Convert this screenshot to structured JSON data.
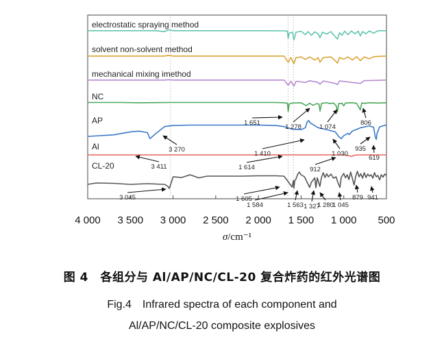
{
  "chart_data": {
    "type": "line",
    "title": "",
    "xlabel_symbol": "σ",
    "xlabel_unit": "cm⁻¹",
    "xlim": [
      4000,
      500
    ],
    "x_ticks": [
      4000,
      3500,
      3000,
      2500,
      2000,
      1500,
      1000,
      500
    ],
    "x_tick_labels": [
      "4 000",
      "3 500",
      "3 000",
      "2 500",
      "2 000",
      "1 500",
      "1 000",
      "500"
    ],
    "grid": false,
    "reference_lines": [
      3030,
      1651,
      1590
    ],
    "series": [
      {
        "name": "electrostatic spraying method",
        "color": "#5fc4ae",
        "points": [
          [
            4000,
            0.5
          ],
          [
            3200,
            0.5
          ],
          [
            3100,
            0.2
          ],
          [
            3050,
            0.8
          ],
          [
            3000,
            0.5
          ],
          [
            2000,
            0.5
          ],
          [
            1700,
            0.45
          ],
          [
            1660,
            0.3
          ],
          [
            1651,
            -2.0
          ],
          [
            1640,
            -0.3
          ],
          [
            1600,
            0.0
          ],
          [
            1584,
            -2.5
          ],
          [
            1560,
            0.0
          ],
          [
            1500,
            0.3
          ],
          [
            1450,
            -0.8
          ],
          [
            1420,
            0.2
          ],
          [
            1380,
            -1.0
          ],
          [
            1340,
            0.1
          ],
          [
            1300,
            -0.5
          ],
          [
            1278,
            -1.8
          ],
          [
            1250,
            0.0
          ],
          [
            1200,
            -0.6
          ],
          [
            1150,
            0.2
          ],
          [
            1100,
            -1.5
          ],
          [
            1074,
            -2.2
          ],
          [
            1050,
            -0.2
          ],
          [
            1020,
            -1.0
          ],
          [
            990,
            0.3
          ],
          [
            950,
            -0.8
          ],
          [
            910,
            0.4
          ],
          [
            870,
            -0.5
          ],
          [
            830,
            0.3
          ],
          [
            806,
            -1.2
          ],
          [
            780,
            0.2
          ],
          [
            740,
            -0.5
          ],
          [
            700,
            0.4
          ],
          [
            650,
            -0.3
          ],
          [
            600,
            0.5
          ],
          [
            500,
            0.5
          ]
        ]
      },
      {
        "name": "solvent non-solvent method",
        "color": "#d9a535",
        "points": [
          [
            4000,
            0.5
          ],
          [
            3100,
            0.5
          ],
          [
            3050,
            0.7
          ],
          [
            3000,
            0.5
          ],
          [
            1700,
            0.5
          ],
          [
            1651,
            -1.5
          ],
          [
            1620,
            0.0
          ],
          [
            1584,
            -2.0
          ],
          [
            1560,
            0.0
          ],
          [
            1500,
            0.2
          ],
          [
            1450,
            -0.6
          ],
          [
            1400,
            0.2
          ],
          [
            1340,
            -0.8
          ],
          [
            1300,
            0.0
          ],
          [
            1278,
            -1.5
          ],
          [
            1240,
            0.0
          ],
          [
            1150,
            0.2
          ],
          [
            1100,
            -1.0
          ],
          [
            1074,
            -1.8
          ],
          [
            1050,
            0.0
          ],
          [
            1000,
            -0.5
          ],
          [
            950,
            0.2
          ],
          [
            900,
            -0.8
          ],
          [
            850,
            0.3
          ],
          [
            806,
            -1.0
          ],
          [
            760,
            0.2
          ],
          [
            700,
            -0.4
          ],
          [
            650,
            0.3
          ],
          [
            500,
            0.5
          ]
        ]
      },
      {
        "name": "mechanical mixing imethod",
        "color": "#b78ad1",
        "points": [
          [
            4000,
            0.5
          ],
          [
            3100,
            0.5
          ],
          [
            3050,
            0.6
          ],
          [
            3000,
            0.5
          ],
          [
            1700,
            0.5
          ],
          [
            1651,
            -1.2
          ],
          [
            1620,
            0.1
          ],
          [
            1584,
            -1.5
          ],
          [
            1560,
            0.1
          ],
          [
            1450,
            -0.3
          ],
          [
            1400,
            0.3
          ],
          [
            1300,
            -0.3
          ],
          [
            1278,
            -0.9
          ],
          [
            1240,
            0.2
          ],
          [
            1100,
            -0.6
          ],
          [
            1074,
            -1.0
          ],
          [
            1050,
            0.2
          ],
          [
            900,
            -0.3
          ],
          [
            806,
            -0.6
          ],
          [
            760,
            0.3
          ],
          [
            500,
            0.5
          ]
        ]
      },
      {
        "name": "NC",
        "color": "#4aa85a",
        "points": [
          [
            4000,
            0.6
          ],
          [
            3600,
            0.6
          ],
          [
            3400,
            0.5
          ],
          [
            3200,
            0.55
          ],
          [
            3000,
            0.6
          ],
          [
            1800,
            0.6
          ],
          [
            1700,
            0.5
          ],
          [
            1660,
            0.3
          ],
          [
            1651,
            -2.5
          ],
          [
            1640,
            0.1
          ],
          [
            1600,
            0.4
          ],
          [
            1500,
            0.5
          ],
          [
            1440,
            -0.5
          ],
          [
            1400,
            0.3
          ],
          [
            1360,
            -0.4
          ],
          [
            1320,
            0.2
          ],
          [
            1290,
            0.0
          ],
          [
            1278,
            -2.4
          ],
          [
            1260,
            0.3
          ],
          [
            1200,
            0.5
          ],
          [
            1160,
            0.2
          ],
          [
            1120,
            0.4
          ],
          [
            1090,
            -0.5
          ],
          [
            1074,
            -2.6
          ],
          [
            1060,
            0.2
          ],
          [
            1020,
            0.3
          ],
          [
            1000,
            -0.6
          ],
          [
            980,
            0.4
          ],
          [
            900,
            0.5
          ],
          [
            850,
            0.3
          ],
          [
            806,
            -2.0
          ],
          [
            790,
            0.4
          ],
          [
            750,
            0.3
          ],
          [
            700,
            0.5
          ],
          [
            600,
            0.4
          ],
          [
            500,
            0.5
          ]
        ]
      },
      {
        "name": "AP",
        "color": "#3a78c8",
        "points": [
          [
            4000,
            -2.0
          ],
          [
            3700,
            -1.6
          ],
          [
            3500,
            -0.8
          ],
          [
            3400,
            -0.6
          ],
          [
            3300,
            -1.0
          ],
          [
            3270,
            -2.6
          ],
          [
            3200,
            -1.2
          ],
          [
            3100,
            0.6
          ],
          [
            3000,
            0.9
          ],
          [
            2800,
            1.0
          ],
          [
            2000,
            1.0
          ],
          [
            1800,
            0.9
          ],
          [
            1700,
            0.6
          ],
          [
            1600,
            -0.1
          ],
          [
            1500,
            -0.2
          ],
          [
            1450,
            0.3
          ],
          [
            1430,
            1.8
          ],
          [
            1410,
            2.2
          ],
          [
            1395,
            1.6
          ],
          [
            1300,
            0.3
          ],
          [
            1200,
            -0.2
          ],
          [
            1100,
            -0.8
          ],
          [
            1060,
            -2.0
          ],
          [
            1030,
            -2.6
          ],
          [
            1000,
            -1.8
          ],
          [
            950,
            -1.2
          ],
          [
            935,
            -1.5
          ],
          [
            900,
            -0.6
          ],
          [
            800,
            0.3
          ],
          [
            700,
            0.8
          ],
          [
            650,
            0.4
          ],
          [
            630,
            -2.2
          ],
          [
            619,
            -2.8
          ],
          [
            610,
            -1.2
          ],
          [
            580,
            0.5
          ],
          [
            530,
            0.9
          ],
          [
            500,
            1.0
          ]
        ]
      },
      {
        "name": "Al",
        "color": "#e8655a",
        "points": [
          [
            4000,
            0.0
          ],
          [
            3500,
            0.0
          ],
          [
            3000,
            0.0
          ],
          [
            2500,
            0.0
          ],
          [
            2000,
            0.0
          ],
          [
            1500,
            0.0
          ],
          [
            1000,
            0.0
          ],
          [
            912,
            -0.4
          ],
          [
            850,
            0.0
          ],
          [
            700,
            0.0
          ],
          [
            500,
            0.0
          ]
        ]
      },
      {
        "name": "CL-20",
        "color": "#555555",
        "points": [
          [
            4000,
            -1.6
          ],
          [
            3900,
            -1.2
          ],
          [
            3700,
            -1.3
          ],
          [
            3500,
            -1.6
          ],
          [
            3300,
            -1.4
          ],
          [
            3100,
            -1.6
          ],
          [
            3060,
            -2.2
          ],
          [
            3045,
            -2.8
          ],
          [
            3030,
            -1.8
          ],
          [
            3000,
            0.6
          ],
          [
            2900,
            0.4
          ],
          [
            2800,
            1.2
          ],
          [
            2700,
            0.3
          ],
          [
            2600,
            0.8
          ],
          [
            2400,
            0.8
          ],
          [
            2200,
            0.8
          ],
          [
            2000,
            0.9
          ],
          [
            1800,
            0.9
          ],
          [
            1700,
            0.8
          ],
          [
            1640,
            -1.2
          ],
          [
            1605,
            -2.4
          ],
          [
            1590,
            -0.5
          ],
          [
            1584,
            -2.7
          ],
          [
            1575,
            -0.5
          ],
          [
            1563,
            -0.2
          ],
          [
            1540,
            1.3
          ],
          [
            1520,
            2.0
          ],
          [
            1500,
            1.2
          ],
          [
            1460,
            0.6
          ],
          [
            1400,
            -2.5
          ],
          [
            1380,
            -1.0
          ],
          [
            1340,
            0.3
          ],
          [
            1327,
            -2.6
          ],
          [
            1310,
            0.3
          ],
          [
            1280,
            -2.2
          ],
          [
            1260,
            0.5
          ],
          [
            1240,
            1.8
          ],
          [
            1220,
            0.4
          ],
          [
            1200,
            1.5
          ],
          [
            1180,
            0.6
          ],
          [
            1150,
            1.4
          ],
          [
            1120,
            0.2
          ],
          [
            1090,
            0.6
          ],
          [
            1070,
            -1.0
          ],
          [
            1045,
            -2.5
          ],
          [
            1030,
            0.4
          ],
          [
            1000,
            1.6
          ],
          [
            980,
            0.3
          ],
          [
            960,
            1.2
          ],
          [
            940,
            -0.2
          ],
          [
            920,
            2.0
          ],
          [
            900,
            0.2
          ],
          [
            879,
            -1.8
          ],
          [
            860,
            0.8
          ],
          [
            840,
            2.2
          ],
          [
            820,
            0.6
          ],
          [
            800,
            1.5
          ],
          [
            780,
            0.2
          ],
          [
            760,
            1.8
          ],
          [
            740,
            0.4
          ],
          [
            720,
            1.4
          ],
          [
            700,
            0.8
          ],
          [
            680,
            1.2
          ],
          [
            660,
            0.2
          ],
          [
            640,
            1.8
          ],
          [
            620,
            0.6
          ],
          [
            600,
            1.0
          ],
          [
            580,
            -0.3
          ],
          [
            560,
            1.2
          ],
          [
            540,
            0.5
          ],
          [
            520,
            1.4
          ],
          [
            500,
            1.0
          ]
        ]
      }
    ],
    "annotations": [
      {
        "text": "1 651",
        "series": "NC"
      },
      {
        "text": "1 278",
        "series": "NC"
      },
      {
        "text": "1 074",
        "series": "NC"
      },
      {
        "text": "806",
        "series": "NC"
      },
      {
        "text": "3 270",
        "series": "AP"
      },
      {
        "text": "1 410",
        "series": "AP"
      },
      {
        "text": "1 030",
        "series": "AP"
      },
      {
        "text": "935",
        "series": "AP"
      },
      {
        "text": "619",
        "series": "AP"
      },
      {
        "text": "3 411",
        "series": "Al"
      },
      {
        "text": "1 614",
        "series": "Al"
      },
      {
        "text": "912",
        "series": "Al"
      },
      {
        "text": "3 045",
        "series": "CL-20"
      },
      {
        "text": "1 605",
        "series": "CL-20"
      },
      {
        "text": "1 584",
        "series": "CL-20"
      },
      {
        "text": "1 563",
        "series": "CL-20"
      },
      {
        "text": "1 327",
        "series": "CL-20"
      },
      {
        "text": "1 280",
        "series": "CL-20"
      },
      {
        "text": "1 045",
        "series": "CL-20"
      },
      {
        "text": "879",
        "series": "CL-20"
      },
      {
        "text": "941",
        "series": "CL-20"
      }
    ]
  },
  "captions": {
    "zh": "图 4　各组分与 Al/AP/NC/CL-20 复合炸药的红外光谱图",
    "en_line1": "Fig.4　Infrared spectra of each component and",
    "en_line2": "Al/AP/NC/CL-20 composite explosives"
  }
}
